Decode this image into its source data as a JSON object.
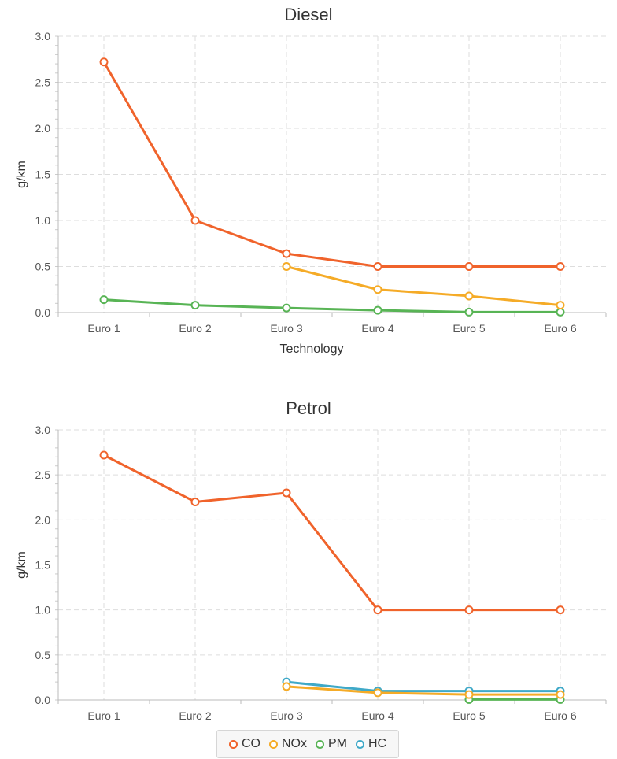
{
  "series_colors": {
    "CO": "#f0632b",
    "NOx": "#f5ab27",
    "PM": "#58b455",
    "HC": "#3fa9c8"
  },
  "legend": [
    {
      "name": "CO",
      "color": "#f0632b"
    },
    {
      "name": "NOx",
      "color": "#f5ab27"
    },
    {
      "name": "PM",
      "color": "#58b455"
    },
    {
      "name": "HC",
      "color": "#3fa9c8"
    }
  ],
  "chart_data": [
    {
      "type": "line",
      "title": "Diesel",
      "xlabel": "Technology",
      "ylabel": "g/km",
      "ylim": [
        0,
        3
      ],
      "yticks": [
        "0.0",
        "0.5",
        "1.0",
        "1.5",
        "2.0",
        "2.5",
        "3.0"
      ],
      "categories": [
        "Euro 1",
        "Euro 2",
        "Euro 3",
        "Euro 4",
        "Euro 5",
        "Euro 6"
      ],
      "grid": true,
      "series": [
        {
          "name": "CO",
          "values": [
            2.72,
            1.0,
            0.64,
            0.5,
            0.5,
            0.5
          ]
        },
        {
          "name": "NOx",
          "values": [
            null,
            null,
            0.5,
            0.25,
            0.18,
            0.08
          ]
        },
        {
          "name": "PM",
          "values": [
            0.14,
            0.08,
            0.05,
            0.025,
            0.005,
            0.005
          ]
        },
        {
          "name": "HC",
          "values": [
            null,
            null,
            null,
            null,
            null,
            null
          ]
        }
      ]
    },
    {
      "type": "line",
      "title": "Petrol",
      "xlabel": "",
      "ylabel": "g/km",
      "ylim": [
        0,
        3
      ],
      "yticks": [
        "0.0",
        "0.5",
        "1.0",
        "1.5",
        "2.0",
        "2.5",
        "3.0"
      ],
      "categories": [
        "Euro 1",
        "Euro 2",
        "Euro 3",
        "Euro 4",
        "Euro 5",
        "Euro 6"
      ],
      "grid": true,
      "series": [
        {
          "name": "CO",
          "values": [
            2.72,
            2.2,
            2.3,
            1.0,
            1.0,
            1.0
          ]
        },
        {
          "name": "NOx",
          "values": [
            null,
            null,
            0.15,
            0.08,
            0.06,
            0.06
          ]
        },
        {
          "name": "PM",
          "values": [
            null,
            null,
            null,
            null,
            0.005,
            0.005
          ]
        },
        {
          "name": "HC",
          "values": [
            null,
            null,
            0.2,
            0.1,
            0.1,
            0.1
          ]
        }
      ]
    }
  ]
}
